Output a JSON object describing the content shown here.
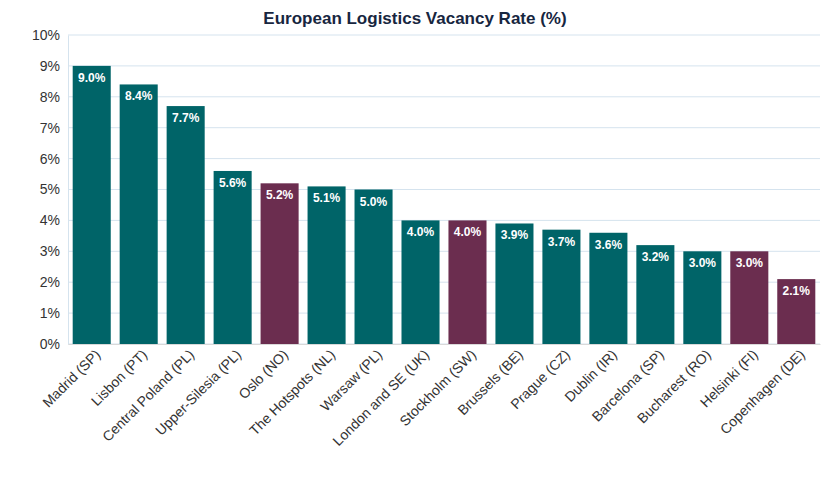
{
  "chart_data": {
    "type": "bar",
    "title": "European Logistics Vacancy Rate (%)",
    "categories": [
      "Madrid (SP)",
      "Lisbon (PT)",
      "Central Poland (PL)",
      "Upper-Silesia (PL)",
      "Oslo (NO)",
      "The Hotspots (NL)",
      "Warsaw (PL)",
      "London and SE (UK)",
      "Stockholm (SW)",
      "Brussels (BE)",
      "Prague (CZ)",
      "Dublin (IR)",
      "Barcelona (SP)",
      "Bucharest (RO)",
      "Helsinki (FI)",
      "Copenhagen (DE)"
    ],
    "values": [
      9.0,
      8.4,
      7.7,
      5.6,
      5.2,
      5.1,
      5.0,
      4.0,
      4.0,
      3.9,
      3.7,
      3.6,
      3.2,
      3.0,
      3.0,
      2.1
    ],
    "value_labels": [
      "9.0%",
      "8.4%",
      "7.7%",
      "5.6%",
      "5.2%",
      "5.1%",
      "5.0%",
      "4.0%",
      "4.0%",
      "3.9%",
      "3.7%",
      "3.6%",
      "3.2%",
      "3.0%",
      "3.0%",
      "2.1%"
    ],
    "colors": [
      "#006468",
      "#006468",
      "#006468",
      "#006468",
      "#6b2d4f",
      "#006468",
      "#006468",
      "#006468",
      "#6b2d4f",
      "#006468",
      "#006468",
      "#006468",
      "#006468",
      "#006468",
      "#6b2d4f",
      "#6b2d4f"
    ],
    "data_labels": true,
    "grid": true,
    "ylim": [
      0,
      10
    ],
    "yticks": [
      {
        "value": 0,
        "label": "0%"
      },
      {
        "value": 1,
        "label": "1%"
      },
      {
        "value": 2,
        "label": "2%"
      },
      {
        "value": 3,
        "label": "3%"
      },
      {
        "value": 4,
        "label": "4%"
      },
      {
        "value": 5,
        "label": "5%"
      },
      {
        "value": 6,
        "label": "6%"
      },
      {
        "value": 7,
        "label": "7%"
      },
      {
        "value": 8,
        "label": "8%"
      },
      {
        "value": 9,
        "label": "9%"
      },
      {
        "value": 10,
        "label": "10%"
      }
    ]
  }
}
